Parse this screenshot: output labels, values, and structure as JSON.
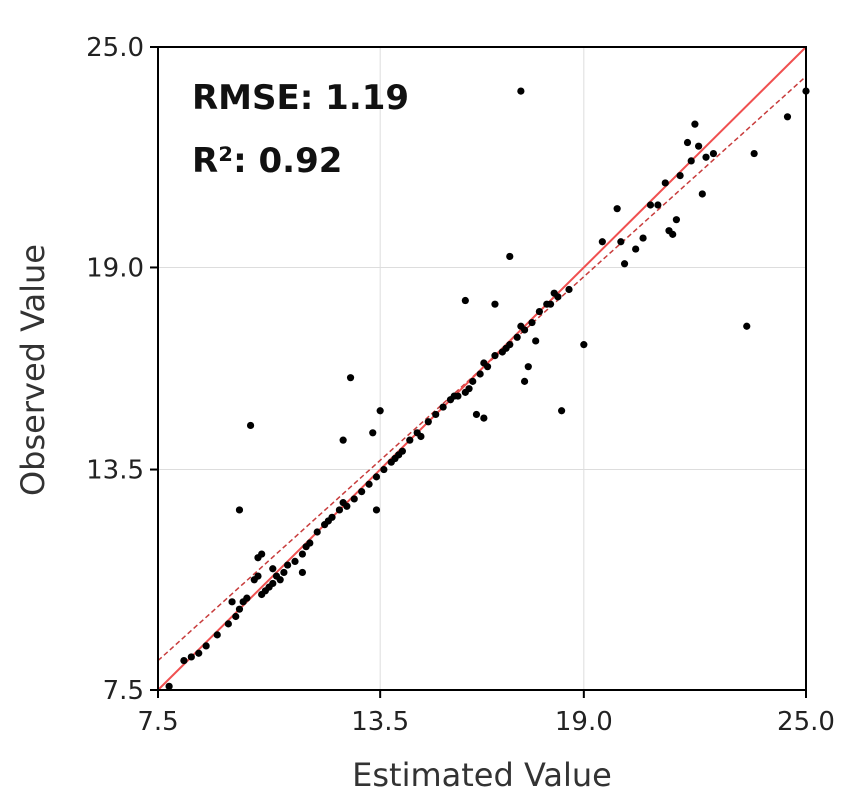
{
  "chart_data": {
    "type": "scatter",
    "xlabel": "Estimated Value",
    "ylabel": "Observed Value",
    "xlim": [
      7.5,
      25.0
    ],
    "ylim": [
      7.5,
      25.0
    ],
    "xticks": [
      "7.5",
      "13.5",
      "19.0",
      "25.0"
    ],
    "yticks": [
      "7.5",
      "13.5",
      "19.0",
      "25.0"
    ],
    "tick_values": [
      7.5,
      13.5,
      19.0,
      25.0
    ],
    "grid": true,
    "annotations": {
      "rmse": "RMSE: 1.19",
      "r2": "R²: 0.92"
    },
    "identity_line": {
      "x": [
        7.5,
        25.0
      ],
      "y": [
        7.5,
        25.0
      ],
      "color": "#f05050"
    },
    "fit_line": {
      "x": [
        7.5,
        25.0
      ],
      "y": [
        8.3,
        24.2
      ],
      "color": "#c83c3c"
    },
    "points_color": "#000000",
    "points": [
      [
        7.8,
        7.6
      ],
      [
        8.2,
        8.3
      ],
      [
        8.4,
        8.4
      ],
      [
        8.6,
        8.5
      ],
      [
        8.8,
        8.7
      ],
      [
        9.1,
        9.0
      ],
      [
        9.4,
        9.3
      ],
      [
        9.6,
        9.5
      ],
      [
        9.7,
        9.7
      ],
      [
        9.8,
        9.9
      ],
      [
        9.5,
        9.9
      ],
      [
        10.1,
        10.5
      ],
      [
        10.3,
        10.1
      ],
      [
        10.5,
        10.3
      ],
      [
        10.6,
        10.4
      ],
      [
        10.7,
        10.6
      ],
      [
        10.9,
        10.7
      ],
      [
        10.4,
        10.2
      ],
      [
        10.6,
        10.8
      ],
      [
        10.2,
        10.6
      ],
      [
        11.0,
        10.9
      ],
      [
        11.2,
        11.0
      ],
      [
        11.4,
        11.2
      ],
      [
        11.6,
        11.5
      ],
      [
        11.8,
        11.8
      ],
      [
        12.0,
        12.0
      ],
      [
        12.2,
        12.2
      ],
      [
        12.4,
        12.4
      ],
      [
        12.6,
        12.5
      ],
      [
        12.8,
        12.7
      ],
      [
        13.0,
        12.9
      ],
      [
        13.2,
        13.1
      ],
      [
        13.4,
        13.3
      ],
      [
        13.6,
        13.5
      ],
      [
        13.9,
        13.8
      ],
      [
        14.1,
        14.0
      ],
      [
        14.3,
        14.3
      ],
      [
        14.5,
        14.5
      ],
      [
        14.8,
        14.8
      ],
      [
        15.0,
        15.0
      ],
      [
        15.2,
        15.2
      ],
      [
        15.4,
        15.4
      ],
      [
        15.6,
        15.5
      ],
      [
        15.8,
        15.6
      ],
      [
        16.0,
        15.9
      ],
      [
        16.2,
        16.1
      ],
      [
        16.4,
        16.3
      ],
      [
        16.6,
        16.6
      ],
      [
        16.8,
        16.7
      ],
      [
        17.0,
        16.9
      ],
      [
        17.2,
        17.1
      ],
      [
        17.4,
        17.3
      ],
      [
        17.6,
        17.5
      ],
      [
        17.8,
        17.8
      ],
      [
        18.0,
        18.0
      ],
      [
        18.3,
        18.2
      ],
      [
        18.6,
        18.4
      ],
      [
        16.9,
        16.8
      ],
      [
        17.3,
        17.4
      ],
      [
        15.5,
        15.5
      ],
      [
        14.0,
        13.9
      ],
      [
        12.5,
        12.6
      ],
      [
        11.5,
        11.4
      ],
      [
        13.8,
        13.7
      ],
      [
        15.9,
        15.7
      ],
      [
        10.8,
        10.5
      ],
      [
        9.9,
        10.0
      ],
      [
        12.1,
        12.1
      ],
      [
        14.6,
        14.4
      ],
      [
        16.3,
        16.4
      ],
      [
        9.7,
        12.4
      ],
      [
        10.0,
        14.7
      ],
      [
        10.2,
        11.1
      ],
      [
        10.3,
        11.2
      ],
      [
        11.4,
        10.7
      ],
      [
        12.5,
        14.3
      ],
      [
        12.7,
        16.0
      ],
      [
        13.3,
        14.5
      ],
      [
        13.4,
        12.4
      ],
      [
        13.5,
        15.1
      ],
      [
        15.8,
        18.1
      ],
      [
        16.1,
        15.0
      ],
      [
        16.3,
        14.9
      ],
      [
        16.6,
        18.0
      ],
      [
        17.0,
        19.3
      ],
      [
        17.3,
        23.8
      ],
      [
        17.4,
        15.9
      ],
      [
        17.5,
        16.3
      ],
      [
        17.7,
        17.0
      ],
      [
        18.1,
        18.0
      ],
      [
        18.2,
        18.3
      ],
      [
        18.4,
        15.1
      ],
      [
        19.0,
        16.9
      ],
      [
        19.5,
        19.7
      ],
      [
        19.9,
        20.6
      ],
      [
        20.0,
        19.7
      ],
      [
        20.1,
        19.1
      ],
      [
        20.4,
        19.5
      ],
      [
        20.6,
        19.8
      ],
      [
        20.8,
        20.7
      ],
      [
        21.0,
        20.7
      ],
      [
        21.2,
        21.3
      ],
      [
        21.3,
        20.0
      ],
      [
        21.4,
        19.9
      ],
      [
        21.6,
        21.5
      ],
      [
        21.9,
        21.9
      ],
      [
        22.1,
        22.3
      ],
      [
        22.2,
        21.0
      ],
      [
        22.3,
        22.0
      ],
      [
        22.5,
        22.1
      ],
      [
        21.8,
        22.4
      ],
      [
        22.0,
        22.9
      ],
      [
        23.4,
        17.4
      ],
      [
        23.6,
        22.1
      ],
      [
        24.5,
        23.1
      ],
      [
        25.0,
        23.8
      ],
      [
        21.5,
        20.3
      ]
    ]
  }
}
